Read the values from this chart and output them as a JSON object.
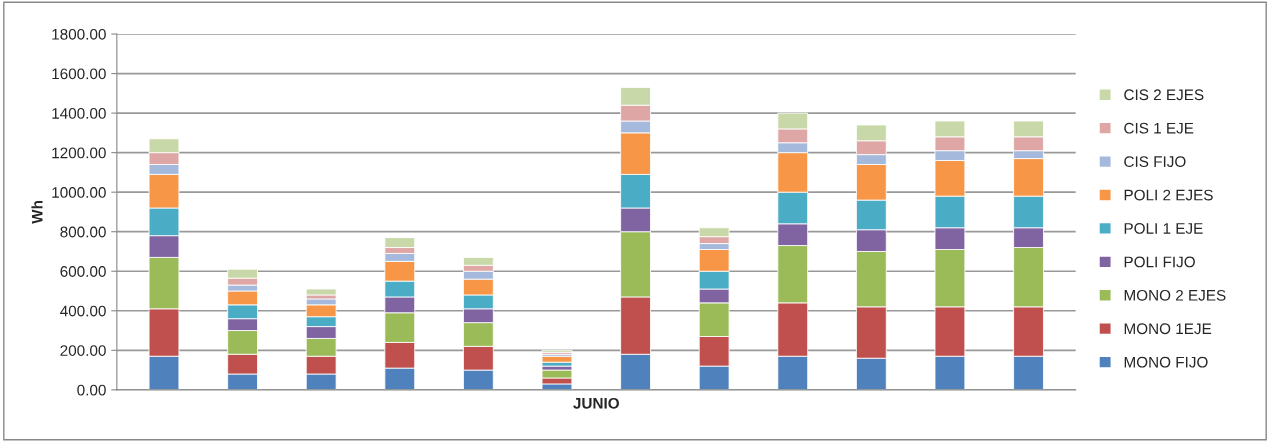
{
  "chart_data": {
    "type": "bar",
    "stacked": true,
    "xlabel": "JUNIO",
    "ylabel": "Wh",
    "categories": [
      null,
      null,
      null,
      null,
      null,
      null,
      null,
      null,
      null,
      null,
      null,
      null
    ],
    "ylim": [
      0,
      1800
    ],
    "yticks": [
      {
        "value": 0,
        "label": "0.00"
      },
      {
        "value": 200,
        "label": "200.00"
      },
      {
        "value": 400,
        "label": "400.00"
      },
      {
        "value": 600,
        "label": "600.00"
      },
      {
        "value": 800,
        "label": "800.00"
      },
      {
        "value": 1000,
        "label": "1000.00"
      },
      {
        "value": 1200,
        "label": "1200.00"
      },
      {
        "value": 1400,
        "label": "1400.00"
      },
      {
        "value": 1600,
        "label": "1600.00"
      },
      {
        "value": 1800,
        "label": "1800.00"
      }
    ],
    "grid": "y",
    "legend": "right",
    "series": [
      {
        "name": "MONO FIJO",
        "color": "#4f81bd",
        "values": [
          170,
          80,
          80,
          110,
          100,
          30,
          180,
          120,
          170,
          160,
          170,
          170
        ]
      },
      {
        "name": "MONO 1EJE",
        "color": "#c0504d",
        "values": [
          240,
          100,
          90,
          130,
          120,
          30,
          290,
          150,
          270,
          260,
          250,
          250
        ]
      },
      {
        "name": "MONO 2 EJES",
        "color": "#9bbb59",
        "values": [
          260,
          120,
          90,
          150,
          120,
          40,
          330,
          170,
          290,
          280,
          290,
          300
        ]
      },
      {
        "name": "POLI FIJO",
        "color": "#8064a2",
        "values": [
          110,
          60,
          60,
          80,
          70,
          20,
          120,
          70,
          110,
          110,
          110,
          100
        ]
      },
      {
        "name": "POLI 1 EJE",
        "color": "#4bacc6",
        "values": [
          140,
          70,
          50,
          80,
          70,
          20,
          170,
          90,
          160,
          150,
          160,
          160
        ]
      },
      {
        "name": "POLI 2 EJES",
        "color": "#f79646",
        "values": [
          170,
          70,
          60,
          100,
          80,
          30,
          210,
          110,
          200,
          180,
          180,
          190
        ]
      },
      {
        "name": "CIS FIJO",
        "color": "#a5b9dd",
        "values": [
          50,
          30,
          30,
          40,
          40,
          10,
          60,
          30,
          50,
          50,
          50,
          40
        ]
      },
      {
        "name": "CIS 1 EJE",
        "color": "#dea7a6",
        "values": [
          60,
          35,
          20,
          30,
          30,
          10,
          80,
          35,
          70,
          70,
          70,
          70
        ]
      },
      {
        "name": "CIS 2 EJES",
        "color": "#c9d8a8",
        "values": [
          70,
          45,
          30,
          50,
          40,
          10,
          90,
          45,
          80,
          80,
          80,
          80
        ]
      }
    ]
  }
}
